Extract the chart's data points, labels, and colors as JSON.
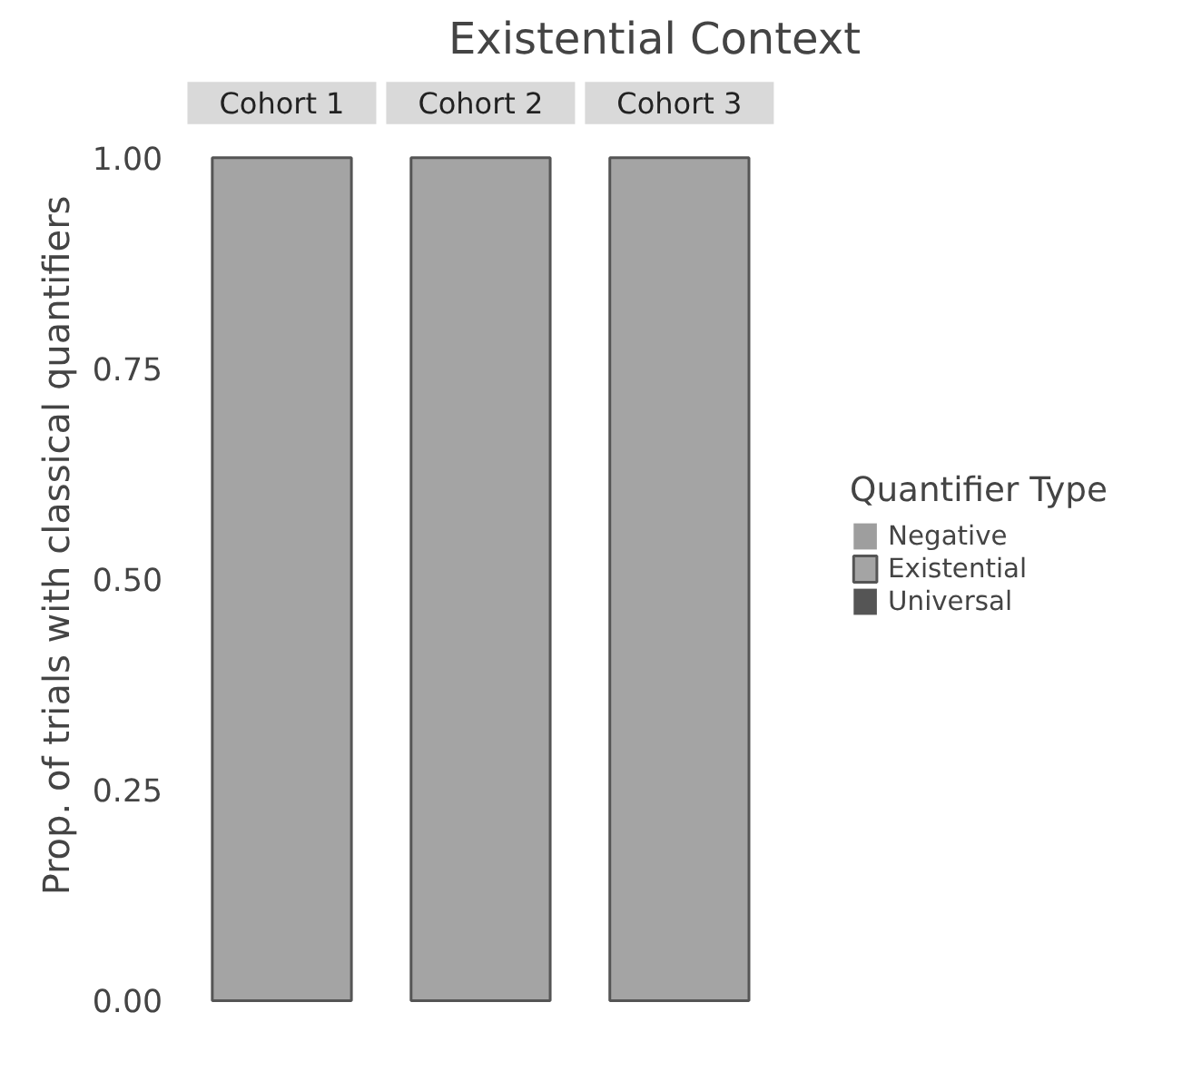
{
  "chart_data": {
    "type": "bar",
    "title": "Existential Context",
    "ylabel": "Prop. of trials with classical quantifiers",
    "legend_title": "Quantifier Type",
    "categories": [
      "Cohort 1",
      "Cohort 2",
      "Cohort 3"
    ],
    "stacked": true,
    "series": [
      {
        "name": "Negative",
        "color": "#9e9e9e",
        "values": [
          0,
          0,
          0
        ]
      },
      {
        "name": "Existential",
        "color": "#a4a4a4",
        "values": [
          1,
          1,
          1
        ]
      },
      {
        "name": "Universal",
        "color": "#555555",
        "values": [
          0,
          0,
          0
        ]
      }
    ],
    "ylim": [
      0,
      1
    ],
    "yticks": [
      {
        "value": 0,
        "label": "0.00"
      },
      {
        "value": 0.25,
        "label": "0.25"
      },
      {
        "value": 0.5,
        "label": "0.50"
      },
      {
        "value": 0.75,
        "label": "0.75"
      },
      {
        "value": 1,
        "label": "1.00"
      }
    ],
    "grid": false,
    "legend": "right",
    "tick_labels": "y"
  }
}
